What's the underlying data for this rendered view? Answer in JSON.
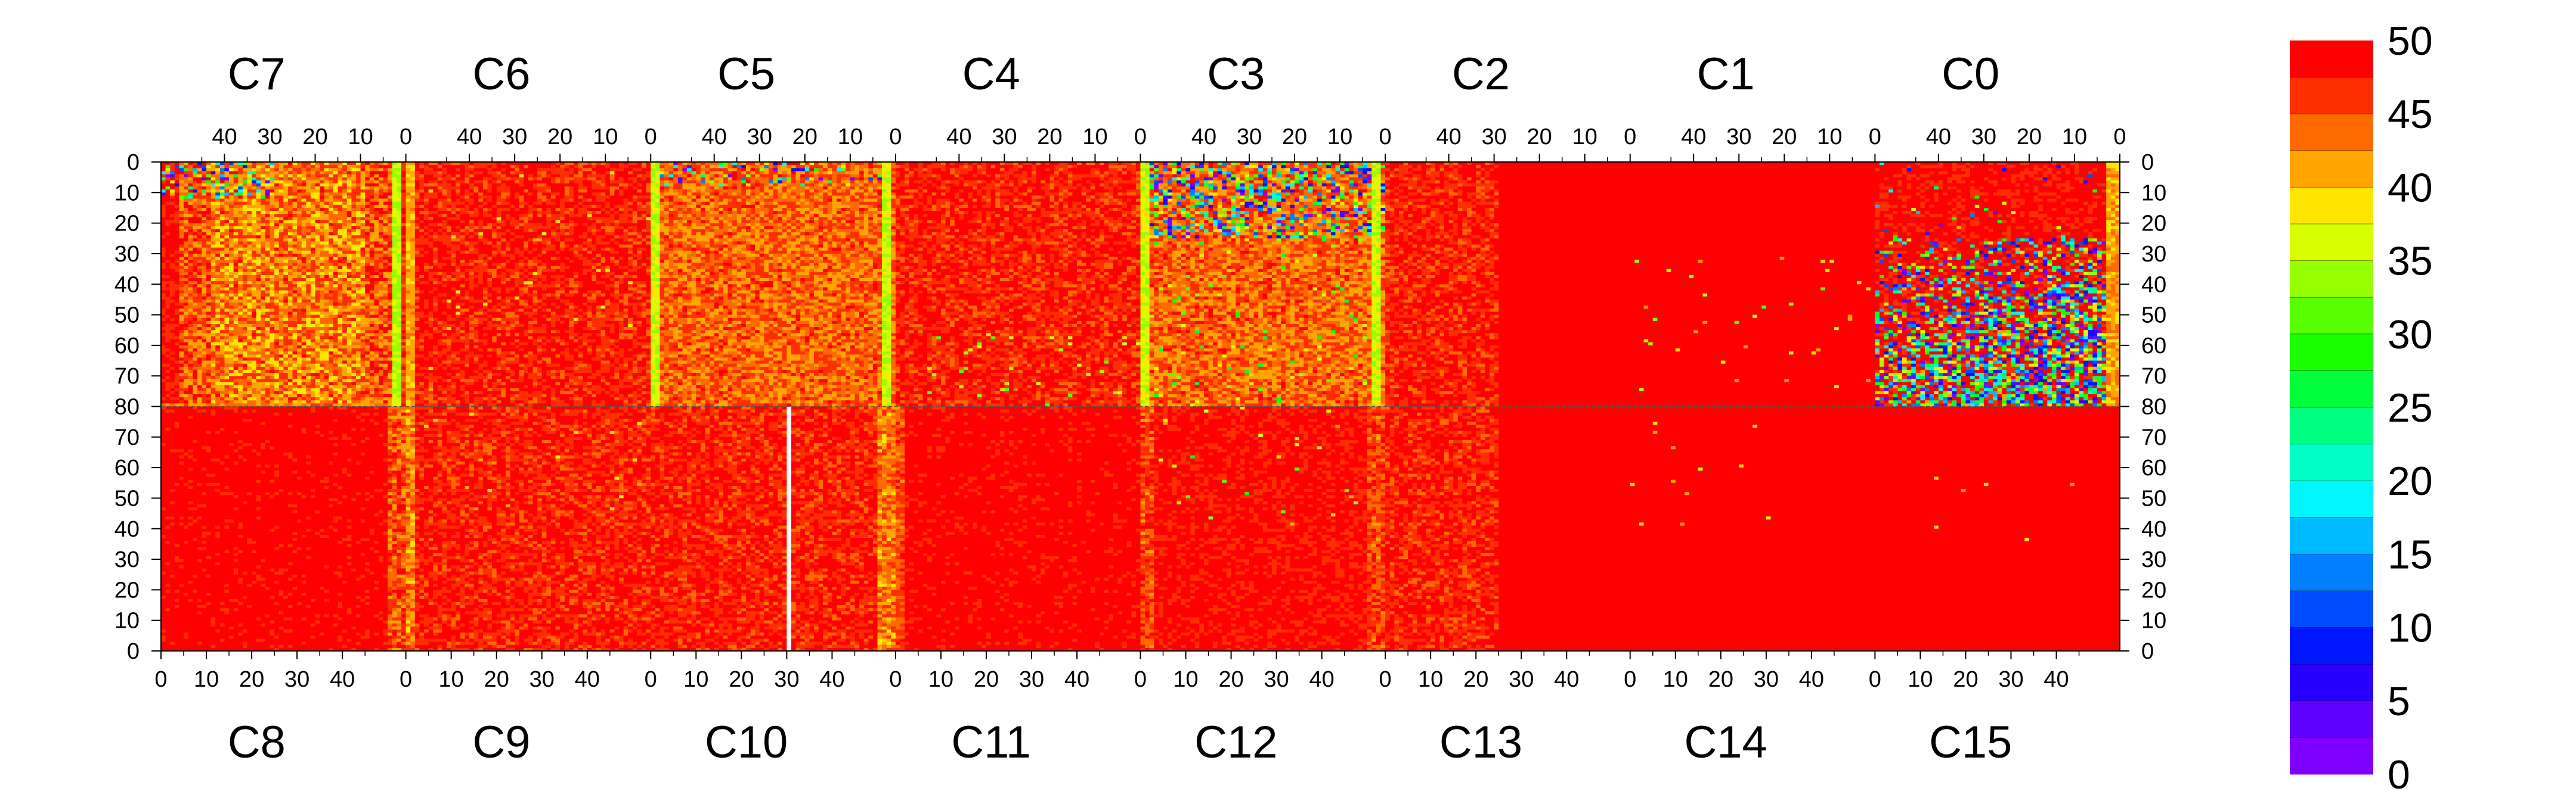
{
  "chart_data": {
    "type": "heatmap",
    "title": "",
    "xlabel": "",
    "ylabel": "",
    "top_modules": [
      "C7",
      "C6",
      "C5",
      "C4",
      "C3",
      "C2",
      "C1",
      "C0"
    ],
    "bottom_modules": [
      "C8",
      "C9",
      "C10",
      "C11",
      "C12",
      "C13",
      "C14",
      "C15"
    ],
    "top_x_ticks": [
      "40",
      "30",
      "20",
      "10",
      "0"
    ],
    "bottom_x_ticks": [
      "0",
      "10",
      "20",
      "30",
      "40"
    ],
    "top_y_ticks": [
      "0",
      "10",
      "20",
      "30",
      "40",
      "50",
      "60",
      "70",
      "80"
    ],
    "bottom_y_ticks": [
      "70",
      "60",
      "50",
      "40",
      "30",
      "20",
      "10",
      "0"
    ],
    "columns_per_module": 54,
    "rows_per_half": 80,
    "value_range": [
      0,
      50
    ],
    "colorbar": {
      "labels": [
        "50",
        "45",
        "40",
        "35",
        "30",
        "25",
        "20",
        "15",
        "10",
        "5",
        "0"
      ],
      "colors": [
        "#ff0000",
        "#ff2e00",
        "#ff6a00",
        "#ffa400",
        "#ffe600",
        "#d8ff00",
        "#96ff00",
        "#58ff00",
        "#1aff00",
        "#00ff3a",
        "#00ff80",
        "#00ffc4",
        "#00f6ff",
        "#00baff",
        "#0080ff",
        "#004cff",
        "#0016ff",
        "#2800ff",
        "#6000ff",
        "#8000ff"
      ]
    },
    "module_profiles": {
      "C7": "red with orange/yellow interior, noisy top-left, green edge column near channel 0",
      "C6": "mostly red, slightly orange, light yellow edge column",
      "C5": "orange/yellow throughout, green edge columns at both sides",
      "C4": "red-orange, occasional yellow/green pixels near bottom",
      "C3": "orange/yellow with noisy blue/green/yellow top rows, green edge columns",
      "C2": "red-orange on left third, uniform red elsewhere",
      "C1": "uniform red with sparse yellow/green pixels",
      "C0": "red top, many scattered green/blue/yellow pixels increasing toward bottom-right",
      "C8": "uniform red, yellow/orange edge column at right",
      "C9": "red-orange with sparse yellow pixels, yellow edge column at left",
      "C10": "red-orange, white dead column at channel 30, yellow edge column at right",
      "C11": "uniform red, orange edge column at left",
      "C12": "red with scattered yellow/green pixels in upper rows",
      "C13": "red-orange on left third, uniform red elsewhere",
      "C14": "uniform red with sparse yellow pixels",
      "C15": "uniform red with very sparse yellow pixels"
    }
  }
}
